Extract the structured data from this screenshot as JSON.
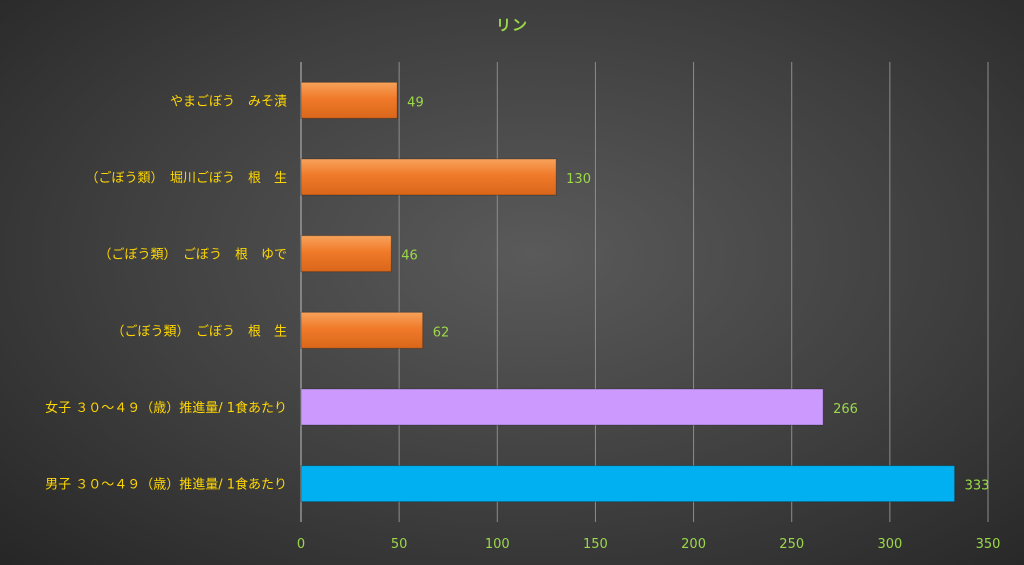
{
  "chart_data": {
    "type": "bar",
    "orientation": "horizontal",
    "title": "リン",
    "categories": [
      "やまごぼう　みそ漬",
      "（ごぼう類）　堀川ごぼう　根　生",
      "（ごぼう類）　ごぼう　根　ゆで",
      "（ごぼう類）　ごぼう　根　生",
      "女子 ３０～４９（歳）推進量/ 1食あたり",
      "男子 ３０～４９（歳）推進量/ 1食あたり"
    ],
    "values": [
      49,
      130,
      46,
      62,
      266,
      333
    ],
    "data_labels": [
      "49",
      "130",
      "46",
      "62",
      "266",
      "333"
    ],
    "bar_colors": [
      "#f07a2a",
      "#f07a2a",
      "#f07a2a",
      "#f07a2a",
      "#cc99ff",
      "#00b0f0"
    ],
    "xlim": [
      0,
      350
    ],
    "x_ticks": [
      0,
      50,
      100,
      150,
      200,
      250,
      300,
      350
    ],
    "x_tick_labels": [
      "0",
      "50",
      "100",
      "150",
      "200",
      "250",
      "300",
      "350"
    ],
    "grid": true,
    "legend": "none",
    "colors": {
      "title": "#9bd84a",
      "category_labels": "#ffd700",
      "data_labels": "#9bd84a",
      "tick_labels": "#9bd84a",
      "gridlines": "#8c8c8c"
    }
  }
}
